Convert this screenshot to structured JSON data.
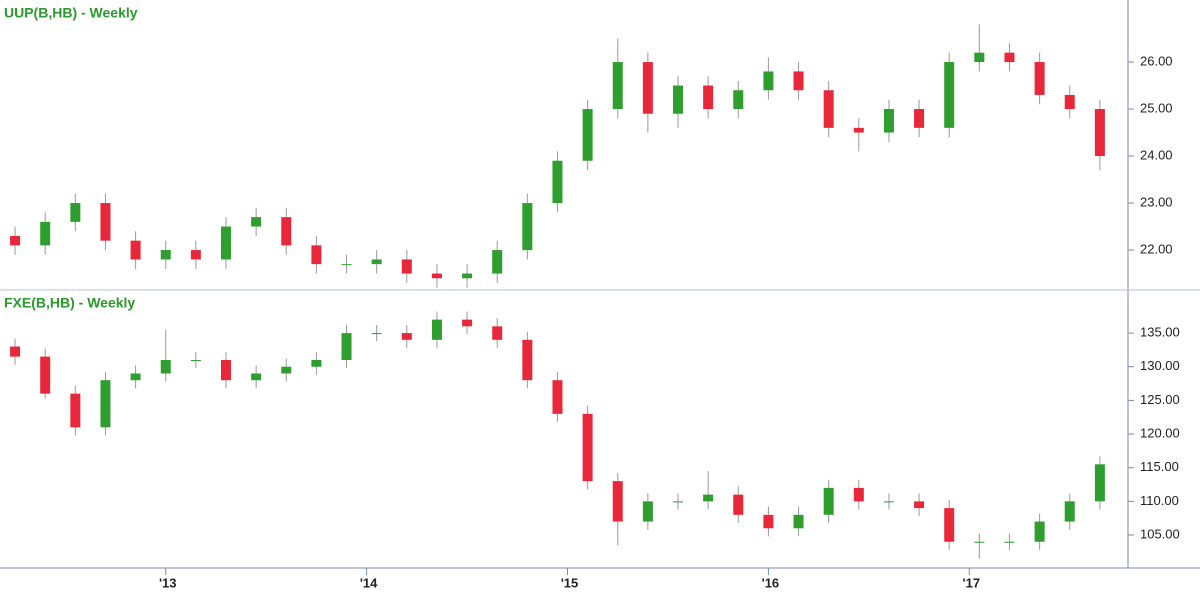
{
  "chart_data": [
    {
      "type": "candlestick",
      "title": "UUP(B,HB) - Weekly",
      "up_color": "#2e9e2e",
      "down_color": "#e8283a",
      "x": [
        2012.25,
        2012.4,
        2012.55,
        2012.7,
        2012.85,
        2013.0,
        2013.15,
        2013.3,
        2013.45,
        2013.6,
        2013.75,
        2013.9,
        2014.05,
        2014.2,
        2014.35,
        2014.5,
        2014.65,
        2014.8,
        2014.95,
        2015.1,
        2015.25,
        2015.4,
        2015.55,
        2015.7,
        2015.85,
        2016.0,
        2016.15,
        2016.3,
        2016.45,
        2016.6,
        2016.75,
        2016.9,
        2017.05,
        2017.2,
        2017.35,
        2017.5,
        2017.65
      ],
      "open": [
        22.3,
        22.1,
        22.6,
        23.0,
        22.2,
        21.8,
        22.0,
        21.8,
        22.5,
        22.7,
        22.1,
        21.7,
        21.7,
        21.8,
        21.5,
        21.4,
        21.5,
        22.0,
        23.0,
        23.9,
        25.0,
        26.0,
        24.9,
        25.5,
        25.0,
        25.4,
        25.8,
        25.4,
        24.6,
        24.5,
        25.0,
        24.6,
        26.0,
        26.2,
        26.0,
        25.3,
        25.0
      ],
      "high": [
        22.5,
        22.8,
        23.2,
        23.2,
        22.4,
        22.2,
        22.2,
        22.7,
        22.9,
        22.9,
        22.3,
        21.9,
        22.0,
        22.0,
        21.7,
        21.7,
        22.2,
        23.2,
        24.1,
        25.2,
        26.5,
        26.2,
        25.7,
        25.7,
        25.6,
        26.1,
        26.0,
        25.6,
        24.8,
        25.2,
        25.2,
        26.2,
        26.8,
        26.4,
        26.2,
        25.5,
        25.2
      ],
      "low": [
        21.9,
        21.9,
        22.4,
        22.0,
        21.6,
        21.6,
        21.6,
        21.6,
        22.3,
        21.9,
        21.5,
        21.5,
        21.5,
        21.3,
        21.2,
        21.2,
        21.3,
        21.8,
        22.8,
        23.7,
        24.8,
        24.5,
        24.6,
        24.8,
        24.8,
        25.2,
        25.2,
        24.4,
        24.1,
        24.3,
        24.4,
        24.4,
        25.8,
        25.8,
        25.1,
        24.8,
        23.7
      ],
      "close": [
        22.1,
        22.6,
        23.0,
        22.2,
        21.8,
        22.0,
        21.8,
        22.5,
        22.7,
        22.1,
        21.7,
        21.7,
        21.8,
        21.5,
        21.4,
        21.5,
        22.0,
        23.0,
        23.9,
        25.0,
        26.0,
        24.9,
        25.5,
        25.0,
        25.4,
        25.8,
        25.4,
        24.6,
        24.5,
        25.0,
        24.6,
        26.0,
        26.2,
        26.0,
        25.3,
        25.0,
        24.0
      ],
      "xlim": [
        2012.175,
        2017.79
      ],
      "ylim": [
        21.15,
        27.32
      ],
      "yticks": [
        {
          "value": 22,
          "label": "22.00"
        },
        {
          "value": 23,
          "label": "23.00"
        },
        {
          "value": 24,
          "label": "24.00"
        },
        {
          "value": 25,
          "label": "25.00"
        },
        {
          "value": 26,
          "label": "26.00"
        }
      ]
    },
    {
      "type": "candlestick",
      "title": "FXE(B,HB) - Weekly",
      "up_color": "#2e9e2e",
      "down_color": "#e8283a",
      "x": [
        2012.25,
        2012.4,
        2012.55,
        2012.7,
        2012.85,
        2013.0,
        2013.15,
        2013.3,
        2013.45,
        2013.6,
        2013.75,
        2013.9,
        2014.05,
        2014.2,
        2014.35,
        2014.5,
        2014.65,
        2014.8,
        2014.95,
        2015.1,
        2015.25,
        2015.4,
        2015.55,
        2015.7,
        2015.85,
        2016.0,
        2016.15,
        2016.3,
        2016.45,
        2016.6,
        2016.75,
        2016.9,
        2017.05,
        2017.2,
        2017.35,
        2017.5,
        2017.65
      ],
      "open": [
        133,
        131.5,
        126,
        121,
        128,
        129,
        131,
        131,
        128,
        129,
        130,
        131,
        135,
        135,
        134,
        137,
        136,
        134,
        128,
        123,
        113,
        107,
        110,
        110,
        111,
        108,
        106,
        108,
        112,
        110,
        110,
        109,
        104,
        104,
        104,
        107,
        110
      ],
      "high": [
        134.2,
        132.7,
        127.2,
        129.2,
        130.2,
        135.5,
        132.2,
        132.2,
        130.2,
        131.2,
        132.2,
        136.2,
        136.2,
        136.2,
        138.2,
        138.2,
        137.2,
        135.2,
        129.2,
        124.2,
        114.2,
        111.2,
        111.2,
        114.5,
        112.2,
        109.2,
        109.2,
        113.2,
        113.2,
        111.2,
        111.2,
        110.2,
        105.2,
        105.2,
        108.2,
        111.2,
        116.7
      ],
      "low": [
        130.3,
        125.3,
        119.8,
        119.8,
        126.8,
        127.8,
        129.8,
        126.8,
        126.8,
        127.8,
        128.8,
        129.8,
        133.8,
        132.8,
        132.8,
        134.8,
        132.8,
        126.8,
        121.8,
        111.8,
        103.5,
        105.8,
        108.8,
        108.8,
        106.8,
        104.8,
        104.8,
        106.8,
        108.8,
        108.8,
        107.8,
        102.8,
        101.5,
        102.8,
        102.8,
        105.8,
        108.8
      ],
      "close": [
        131.5,
        126,
        121,
        128,
        129,
        131,
        131,
        128,
        129,
        130,
        131,
        135,
        135,
        134,
        137,
        136,
        134,
        128,
        123,
        113,
        107,
        110,
        110,
        111,
        108,
        106,
        108,
        112,
        110,
        110,
        109,
        104,
        104,
        104,
        107,
        110,
        115.5
      ],
      "xlim": [
        2012.175,
        2017.79
      ],
      "ylim": [
        100.1,
        141.4
      ],
      "yticks": [
        {
          "value": 105,
          "label": "105.00"
        },
        {
          "value": 110,
          "label": "110.00"
        },
        {
          "value": 115,
          "label": "115.00"
        },
        {
          "value": 120,
          "label": "120.00"
        },
        {
          "value": 125,
          "label": "125.00"
        },
        {
          "value": 130,
          "label": "130.00"
        },
        {
          "value": 135,
          "label": "135.00"
        }
      ],
      "xticks": [
        {
          "value": 2013,
          "label": "'13"
        },
        {
          "value": 2014,
          "label": "'14"
        },
        {
          "value": 2015,
          "label": "'15"
        },
        {
          "value": 2016,
          "label": "'16"
        },
        {
          "value": 2017,
          "label": "'17"
        }
      ]
    }
  ]
}
